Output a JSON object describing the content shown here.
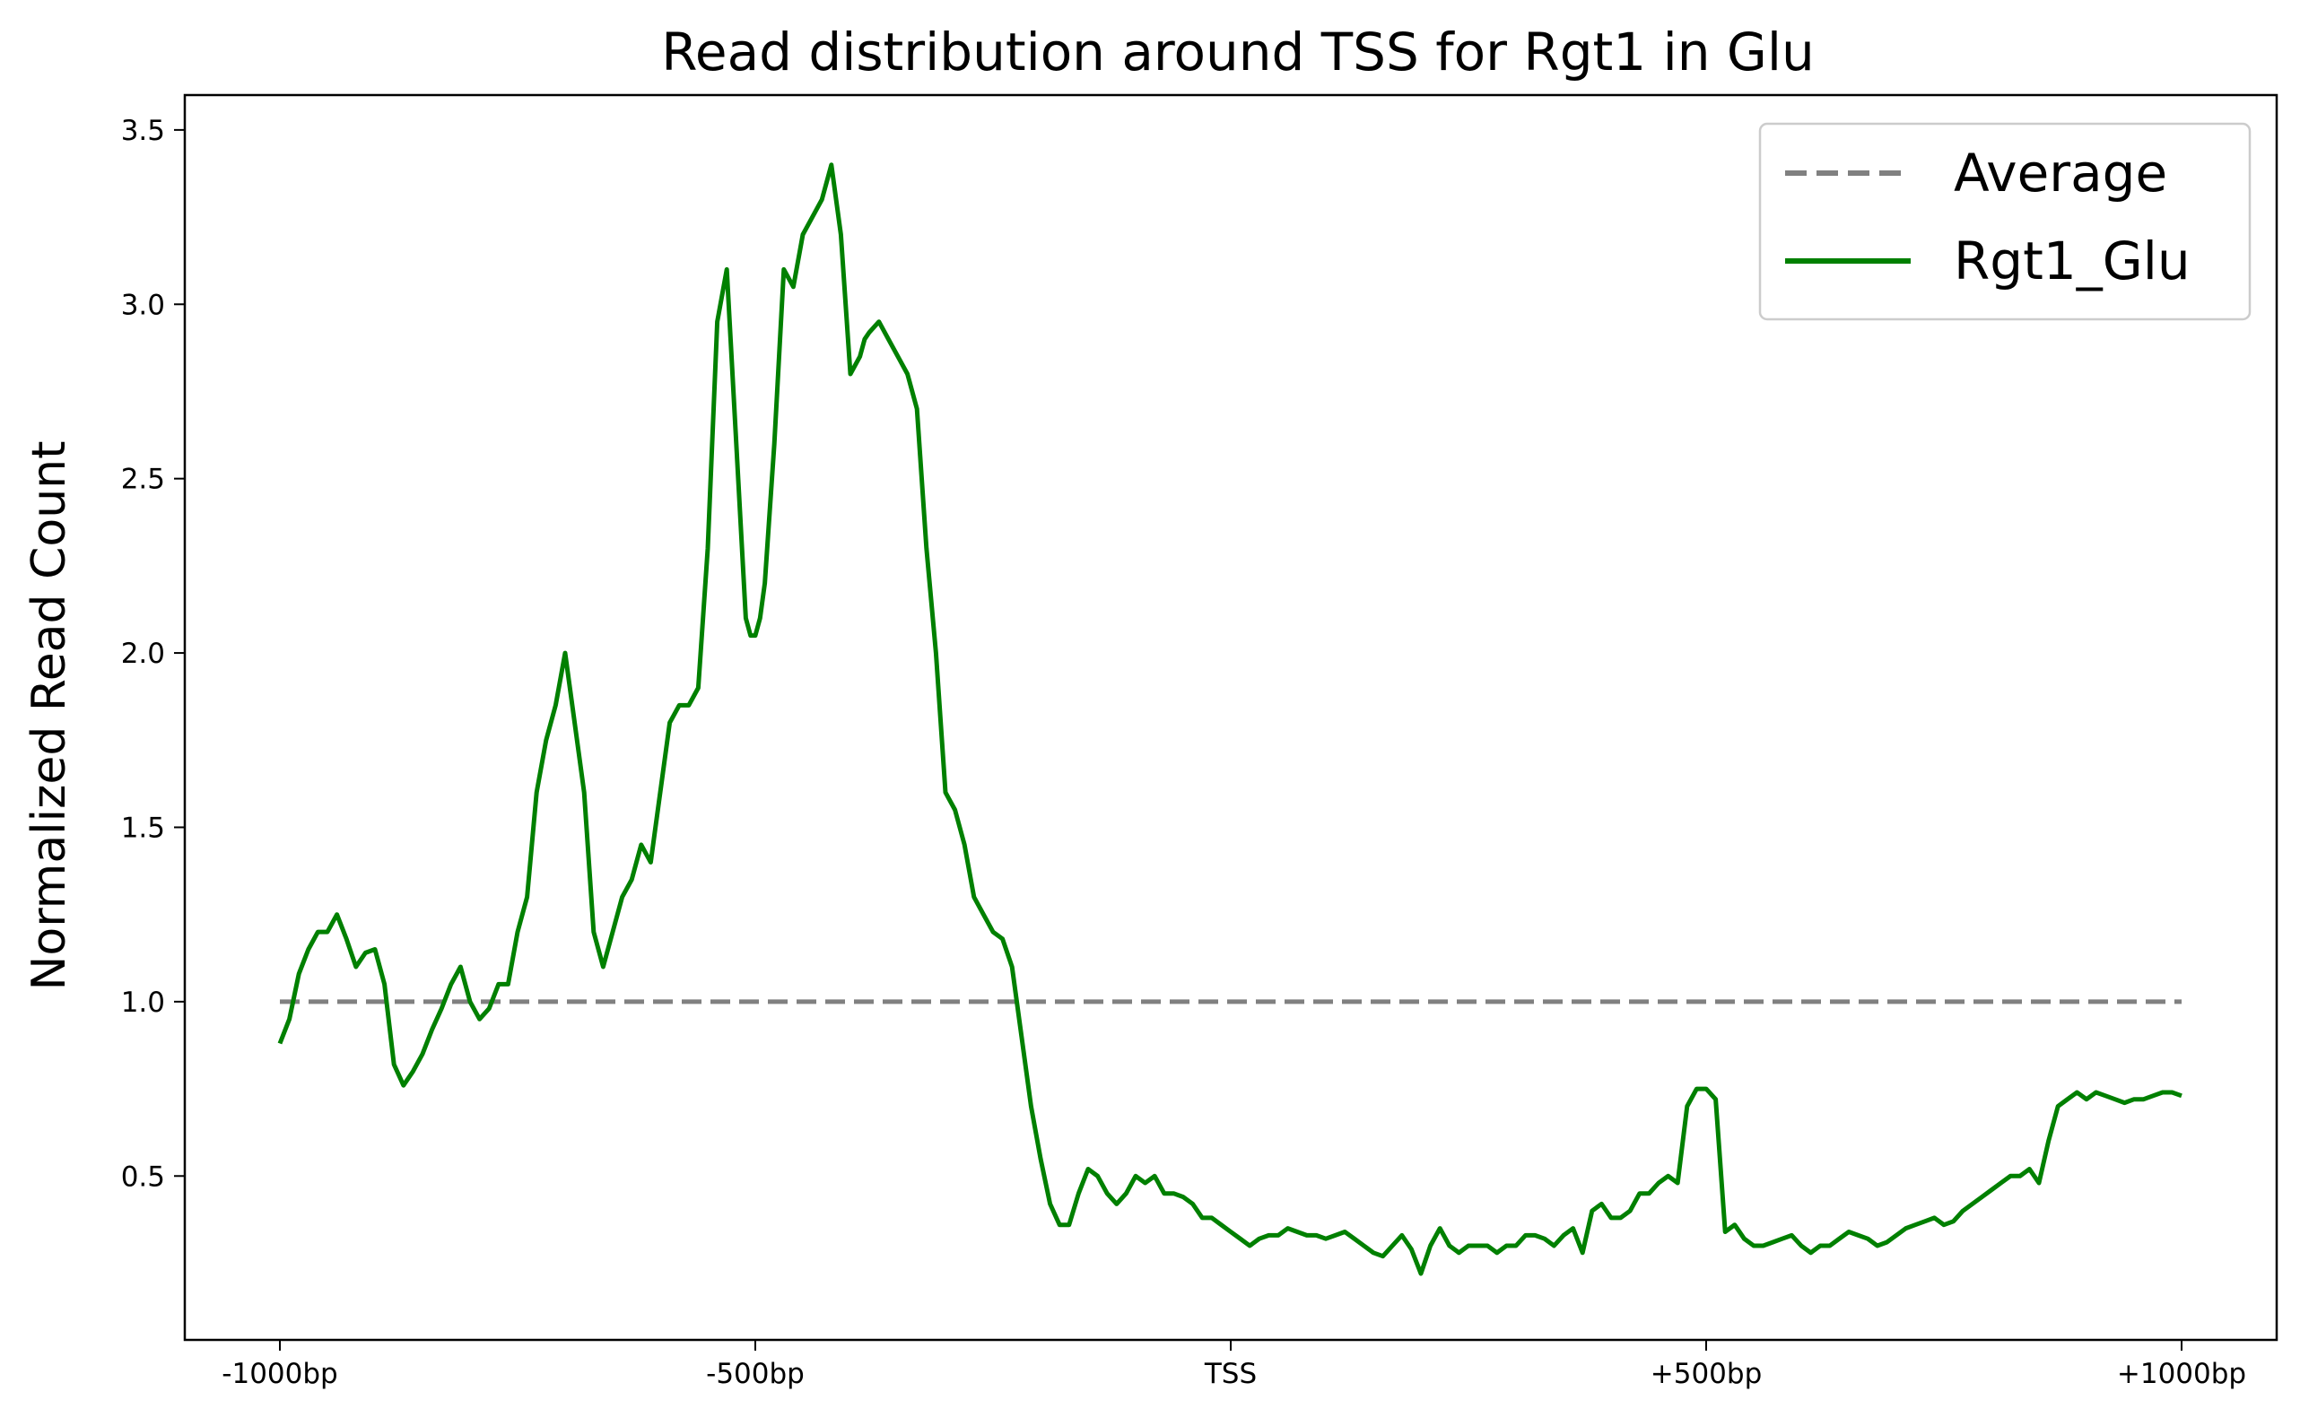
{
  "chart_data": {
    "type": "line",
    "title": "Read distribution around TSS for Rgt1 in Glu",
    "xlabel": "",
    "ylabel": "Normalized Read Count",
    "xlim": [
      -1100,
      1100
    ],
    "ylim": [
      0.03,
      3.6
    ],
    "x_ticks": [
      {
        "value": -1000,
        "label": "-1000bp"
      },
      {
        "value": -500,
        "label": "-500bp"
      },
      {
        "value": 0,
        "label": "TSS"
      },
      {
        "value": 500,
        "label": "+500bp"
      },
      {
        "value": 1000,
        "label": "+1000bp"
      }
    ],
    "y_ticks": [
      {
        "value": 0.5,
        "label": "0.5"
      },
      {
        "value": 1.0,
        "label": "1.0"
      },
      {
        "value": 1.5,
        "label": "1.5"
      },
      {
        "value": 2.0,
        "label": "2.0"
      },
      {
        "value": 2.5,
        "label": "2.5"
      },
      {
        "value": 3.0,
        "label": "3.0"
      },
      {
        "value": 3.5,
        "label": "3.5"
      }
    ],
    "grid": false,
    "legend_position": "top-right",
    "series": [
      {
        "name": "Average",
        "color": "#808080",
        "style": "dashed",
        "x": [
          -1000,
          1000
        ],
        "y": [
          1.0,
          1.0
        ]
      },
      {
        "name": "Rgt1_Glu",
        "color": "#008000",
        "style": "solid",
        "x": [
          -1000,
          -990,
          -980,
          -970,
          -960,
          -950,
          -940,
          -930,
          -920,
          -910,
          -900,
          -890,
          -880,
          -870,
          -860,
          -850,
          -840,
          -830,
          -820,
          -810,
          -800,
          -790,
          -780,
          -770,
          -760,
          -750,
          -740,
          -730,
          -720,
          -710,
          -700,
          -695,
          -690,
          -680,
          -670,
          -660,
          -650,
          -640,
          -630,
          -620,
          -610,
          -600,
          -590,
          -580,
          -570,
          -560,
          -550,
          -540,
          -530,
          -520,
          -510,
          -505,
          -500,
          -495,
          -490,
          -480,
          -470,
          -460,
          -450,
          -440,
          -430,
          -420,
          -410,
          -400,
          -390,
          -385,
          -380,
          -370,
          -360,
          -350,
          -340,
          -330,
          -320,
          -310,
          -300,
          -290,
          -280,
          -270,
          -260,
          -250,
          -240,
          -230,
          -220,
          -210,
          -200,
          -190,
          -180,
          -170,
          -160,
          -150,
          -140,
          -130,
          -120,
          -110,
          -100,
          -90,
          -80,
          -70,
          -60,
          -50,
          -40,
          -30,
          -20,
          -10,
          0,
          10,
          20,
          30,
          40,
          50,
          60,
          70,
          80,
          90,
          100,
          110,
          120,
          130,
          140,
          150,
          160,
          170,
          180,
          190,
          200,
          210,
          220,
          230,
          240,
          250,
          260,
          270,
          280,
          290,
          300,
          310,
          320,
          330,
          340,
          350,
          360,
          370,
          380,
          390,
          400,
          410,
          420,
          430,
          440,
          450,
          460,
          470,
          480,
          490,
          500,
          510,
          520,
          530,
          540,
          550,
          560,
          570,
          580,
          590,
          600,
          610,
          620,
          630,
          640,
          650,
          660,
          670,
          680,
          690,
          700,
          710,
          720,
          730,
          740,
          750,
          760,
          770,
          780,
          790,
          800,
          810,
          820,
          830,
          840,
          850,
          860,
          870,
          880,
          890,
          900,
          910,
          920,
          930,
          940,
          950,
          960,
          970,
          980,
          990,
          1000
        ],
        "y": [
          0.88,
          0.95,
          1.08,
          1.15,
          1.2,
          1.2,
          1.25,
          1.18,
          1.1,
          1.14,
          1.15,
          1.05,
          0.82,
          0.76,
          0.8,
          0.85,
          0.92,
          0.98,
          1.05,
          1.1,
          1.0,
          0.95,
          0.98,
          1.05,
          1.05,
          1.2,
          1.3,
          1.6,
          1.75,
          1.85,
          2.0,
          1.9,
          1.8,
          1.6,
          1.2,
          1.1,
          1.2,
          1.3,
          1.35,
          1.45,
          1.4,
          1.6,
          1.8,
          1.85,
          1.85,
          1.9,
          2.3,
          2.95,
          3.1,
          2.6,
          2.1,
          2.05,
          2.05,
          2.1,
          2.2,
          2.6,
          3.1,
          3.05,
          3.2,
          3.25,
          3.3,
          3.4,
          3.2,
          2.8,
          2.85,
          2.9,
          2.92,
          2.95,
          2.9,
          2.85,
          2.8,
          2.7,
          2.3,
          2.0,
          1.6,
          1.55,
          1.45,
          1.3,
          1.25,
          1.2,
          1.18,
          1.1,
          0.9,
          0.7,
          0.55,
          0.42,
          0.36,
          0.36,
          0.45,
          0.52,
          0.5,
          0.45,
          0.42,
          0.45,
          0.5,
          0.48,
          0.5,
          0.45,
          0.45,
          0.44,
          0.42,
          0.38,
          0.38,
          0.36,
          0.34,
          0.32,
          0.3,
          0.32,
          0.33,
          0.33,
          0.35,
          0.34,
          0.33,
          0.33,
          0.32,
          0.33,
          0.34,
          0.32,
          0.3,
          0.28,
          0.27,
          0.3,
          0.33,
          0.29,
          0.22,
          0.3,
          0.35,
          0.3,
          0.28,
          0.3,
          0.3,
          0.3,
          0.28,
          0.3,
          0.3,
          0.33,
          0.33,
          0.32,
          0.3,
          0.33,
          0.35,
          0.28,
          0.4,
          0.42,
          0.38,
          0.38,
          0.4,
          0.45,
          0.45,
          0.48,
          0.5,
          0.48,
          0.7,
          0.75,
          0.75,
          0.72,
          0.34,
          0.36,
          0.32,
          0.3,
          0.3,
          0.31,
          0.32,
          0.33,
          0.3,
          0.28,
          0.3,
          0.3,
          0.32,
          0.34,
          0.33,
          0.32,
          0.3,
          0.31,
          0.33,
          0.35,
          0.36,
          0.37,
          0.38,
          0.36,
          0.37,
          0.4,
          0.42,
          0.44,
          0.46,
          0.48,
          0.5,
          0.5,
          0.52,
          0.48,
          0.6,
          0.7,
          0.72,
          0.74,
          0.72,
          0.74,
          0.73,
          0.72,
          0.71,
          0.72,
          0.72,
          0.73,
          0.74,
          0.74,
          0.73
        ]
      }
    ]
  }
}
